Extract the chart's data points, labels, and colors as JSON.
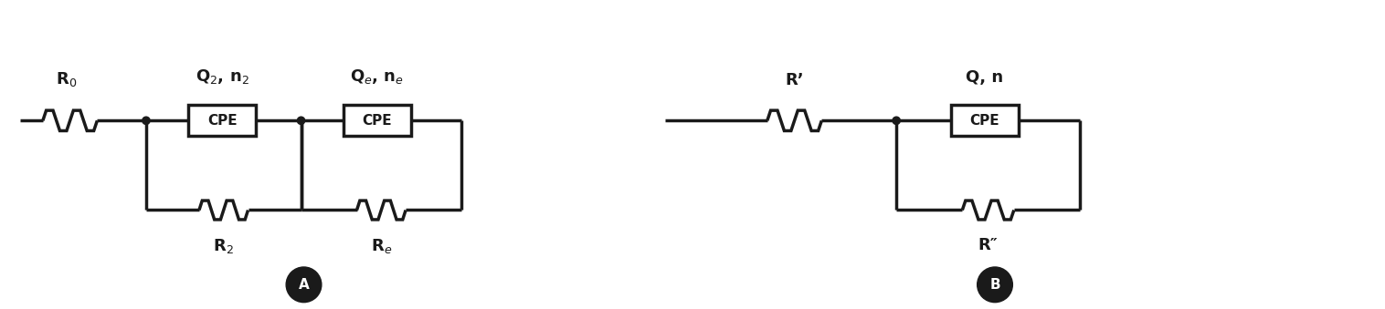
{
  "bg_color": "#ffffff",
  "line_color": "#1a1a1a",
  "line_width": 2.5,
  "circuit_A": {
    "R0_label": "R$_0$",
    "CPE1_label": "Q$_2$, n$_2$",
    "R1_label": "R$_2$",
    "CPE2_label": "Q$_e$, n$_e$",
    "R2_label": "R$_e$",
    "badge": "A"
  },
  "circuit_B": {
    "R_label": "R’",
    "CPE_label": "Q, n",
    "R2_label": "R″",
    "badge": "B"
  }
}
